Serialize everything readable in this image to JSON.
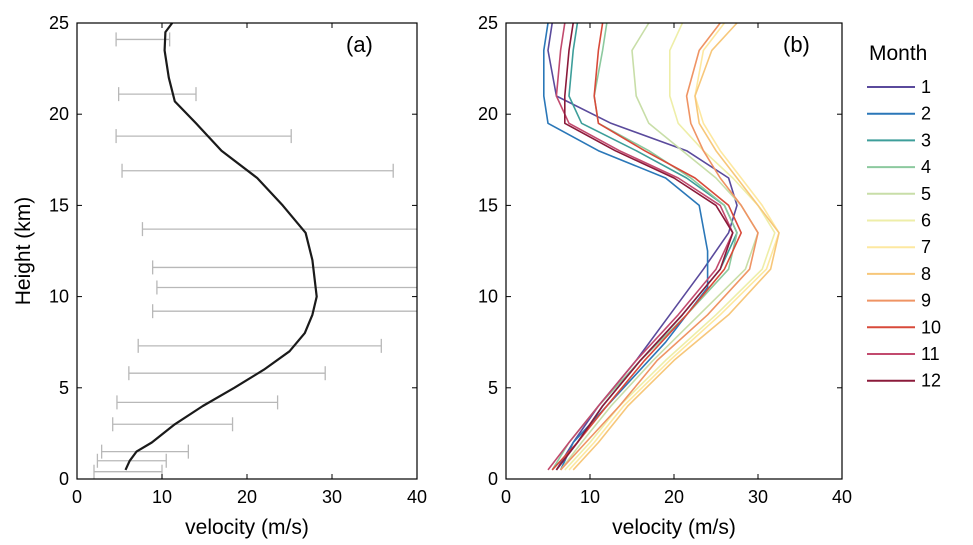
{
  "chart_data": [
    {
      "type": "line",
      "panel_label": "(a)",
      "xlabel": "velocity (m/s)",
      "ylabel": "Height (km)",
      "xlim": [
        0,
        40
      ],
      "ylim": [
        0,
        25
      ],
      "xticks": [
        "0",
        "10",
        "20",
        "30",
        "40"
      ],
      "yticks": [
        "0",
        "5",
        "10",
        "15",
        "20",
        "25"
      ],
      "grid": false,
      "line_color": "#1a1a1a",
      "errorbar_color": "#b8b8b8",
      "series": [
        {
          "x": [
            5.7,
            6.2,
            7.0,
            8.8,
            11.5,
            14.8,
            18.5,
            22.0,
            25.0,
            26.8,
            27.7,
            28.2,
            27.7,
            26.9,
            24.2,
            21.2,
            17.0,
            14.0,
            11.5,
            10.8,
            10.3,
            10.4,
            11.2
          ],
          "y": [
            0.5,
            1.0,
            1.5,
            2.0,
            3.0,
            4.0,
            5.0,
            6.0,
            7.0,
            8.0,
            9.0,
            10.0,
            12.0,
            13.5,
            15.0,
            16.5,
            18.0,
            19.5,
            20.7,
            22.0,
            23.5,
            24.5,
            25.0
          ]
        }
      ],
      "error_bars": [
        {
          "y": 0.4,
          "lo": 2.0,
          "hi": 10.0
        },
        {
          "y": 1.0,
          "lo": 2.4,
          "hi": 10.5
        },
        {
          "y": 1.5,
          "lo": 2.9,
          "hi": 13.1
        },
        {
          "y": 3.0,
          "lo": 4.2,
          "hi": 18.3
        },
        {
          "y": 4.2,
          "lo": 4.7,
          "hi": 23.6
        },
        {
          "y": 5.8,
          "lo": 6.1,
          "hi": 29.2
        },
        {
          "y": 7.3,
          "lo": 7.2,
          "hi": 35.8
        },
        {
          "y": 9.2,
          "lo": 8.9,
          "hi": 40.0
        },
        {
          "y": 10.5,
          "lo": 9.4,
          "hi": 40.0
        },
        {
          "y": 11.6,
          "lo": 8.9,
          "hi": 40.0
        },
        {
          "y": 13.7,
          "lo": 7.7,
          "hi": 40.0
        },
        {
          "y": 16.9,
          "lo": 5.3,
          "hi": 37.2
        },
        {
          "y": 18.8,
          "lo": 4.6,
          "hi": 25.2
        },
        {
          "y": 21.1,
          "lo": 4.9,
          "hi": 14.0
        },
        {
          "y": 24.1,
          "lo": 4.6,
          "hi": 10.9
        }
      ]
    },
    {
      "type": "line",
      "panel_label": "(b)",
      "xlabel": "velocity (m/s)",
      "xlim": [
        0,
        40
      ],
      "ylim": [
        0,
        25
      ],
      "xticks": [
        "0",
        "10",
        "20",
        "30",
        "40"
      ],
      "yticks": [
        "0",
        "5",
        "10",
        "15",
        "20",
        "25"
      ],
      "grid": false,
      "legend": {
        "title": "Month",
        "position": "right"
      },
      "series": [
        {
          "name": "1",
          "color": "#5a4a9c",
          "x": [
            6.0,
            8.0,
            11.0,
            15.5,
            19.5,
            23.5,
            26.5,
            27.5,
            26.5,
            21.5,
            12.5,
            6.0,
            5.0,
            5.5
          ],
          "y": [
            0.5,
            2,
            4,
            6.5,
            9,
            11.5,
            13.5,
            15,
            16.5,
            18,
            19.5,
            21,
            23.5,
            25
          ]
        },
        {
          "name": "2",
          "color": "#2a77b8",
          "x": [
            6.5,
            8.0,
            10.0,
            14.0,
            19.0,
            24.0,
            24.0,
            23.0,
            19.0,
            11.0,
            5.0,
            4.5,
            4.5,
            5.0
          ],
          "y": [
            0.5,
            2,
            3,
            5,
            7.5,
            10.5,
            12.5,
            15,
            16.5,
            18,
            19.5,
            21,
            23.5,
            25
          ]
        },
        {
          "name": "3",
          "color": "#3d9e9a",
          "x": [
            6.0,
            8.5,
            11.5,
            16.0,
            21.0,
            25.5,
            27.5,
            26.0,
            21.5,
            15.5,
            9.0,
            7.5,
            8.0,
            8.5
          ],
          "y": [
            0.5,
            2,
            4,
            6.5,
            9,
            11.5,
            13.5,
            15,
            16.5,
            18,
            19.5,
            21,
            23.5,
            25
          ]
        },
        {
          "name": "4",
          "color": "#8cc99e",
          "x": [
            5.5,
            7.5,
            11.0,
            16.0,
            21.5,
            26.5,
            27.5,
            26.0,
            22.0,
            17.0,
            11.0,
            10.5,
            11.5,
            12.0
          ],
          "y": [
            0.5,
            2,
            4,
            6.5,
            9,
            11.5,
            13.5,
            15,
            16.5,
            18,
            19.5,
            21,
            23.5,
            25
          ]
        },
        {
          "name": "5",
          "color": "#c8dea8",
          "x": [
            6.5,
            9.0,
            12.5,
            17.5,
            23.0,
            28.5,
            30.0,
            28.0,
            25.0,
            21.0,
            17.0,
            15.5,
            15.0,
            17.0
          ],
          "y": [
            0.5,
            2,
            4,
            6.5,
            9,
            11.5,
            13.5,
            15,
            16.5,
            18,
            19.5,
            21,
            23.5,
            25
          ]
        },
        {
          "name": "6",
          "color": "#eeeea8",
          "x": [
            7.0,
            10.0,
            13.5,
            19.0,
            25.0,
            30.5,
            32.0,
            30.0,
            27.0,
            23.5,
            20.5,
            19.5,
            19.5,
            21.0
          ],
          "y": [
            0.5,
            2,
            4,
            6.5,
            9,
            11.5,
            13.5,
            15,
            16.5,
            18,
            19.5,
            21,
            23.5,
            25
          ]
        },
        {
          "name": "7",
          "color": "#fde8a0",
          "x": [
            7.5,
            10.5,
            14.0,
            19.5,
            25.5,
            31.0,
            32.5,
            30.5,
            28.0,
            25.5,
            23.5,
            22.5,
            23.5,
            26.0
          ],
          "y": [
            0.5,
            2,
            4,
            6.5,
            9,
            11.5,
            13.5,
            15,
            16.5,
            18,
            19.5,
            21,
            23.5,
            25
          ]
        },
        {
          "name": "8",
          "color": "#f7c77a",
          "x": [
            8.0,
            11.0,
            14.5,
            20.0,
            26.5,
            31.5,
            32.5,
            30.0,
            27.5,
            25.0,
            23.0,
            22.5,
            24.5,
            27.5
          ],
          "y": [
            0.5,
            2,
            4,
            6.5,
            9,
            11.5,
            13.5,
            15,
            16.5,
            18,
            19.5,
            21,
            23.5,
            25
          ]
        },
        {
          "name": "9",
          "color": "#ef9464",
          "x": [
            6.5,
            9.5,
            13.5,
            18.0,
            24.0,
            29.0,
            30.0,
            28.0,
            25.5,
            23.5,
            22.0,
            21.5,
            23.0,
            25.5
          ],
          "y": [
            0.5,
            2,
            4,
            6.5,
            9,
            11.5,
            13.5,
            15,
            16.5,
            18,
            19.5,
            21,
            23.5,
            25
          ]
        },
        {
          "name": "10",
          "color": "#d84a3a",
          "x": [
            5.5,
            8.5,
            12.0,
            16.5,
            21.5,
            26.0,
            28.0,
            26.5,
            22.5,
            16.5,
            11.0,
            10.5,
            11.0,
            11.5
          ],
          "y": [
            0.5,
            2,
            4,
            6.5,
            9,
            11.5,
            13.5,
            15,
            16.5,
            18,
            19.5,
            21,
            23.5,
            25
          ]
        },
        {
          "name": "11",
          "color": "#c24a6e",
          "x": [
            5.0,
            7.5,
            11.0,
            15.5,
            20.5,
            25.0,
            27.0,
            25.5,
            20.5,
            13.5,
            7.5,
            6.0,
            6.5,
            7.0
          ],
          "y": [
            0.5,
            2,
            4,
            6.5,
            9,
            11.5,
            13.5,
            15,
            16.5,
            18,
            19.5,
            21,
            23.5,
            25
          ]
        },
        {
          "name": "12",
          "color": "#8b1a3a",
          "x": [
            6.0,
            8.5,
            11.5,
            16.0,
            21.0,
            25.5,
            27.0,
            25.0,
            20.0,
            13.0,
            7.0,
            7.0,
            7.5,
            8.0
          ],
          "y": [
            0.5,
            2,
            4,
            6.5,
            9,
            11.5,
            13.5,
            15,
            16.5,
            18,
            19.5,
            21,
            23.5,
            25
          ]
        }
      ]
    }
  ]
}
